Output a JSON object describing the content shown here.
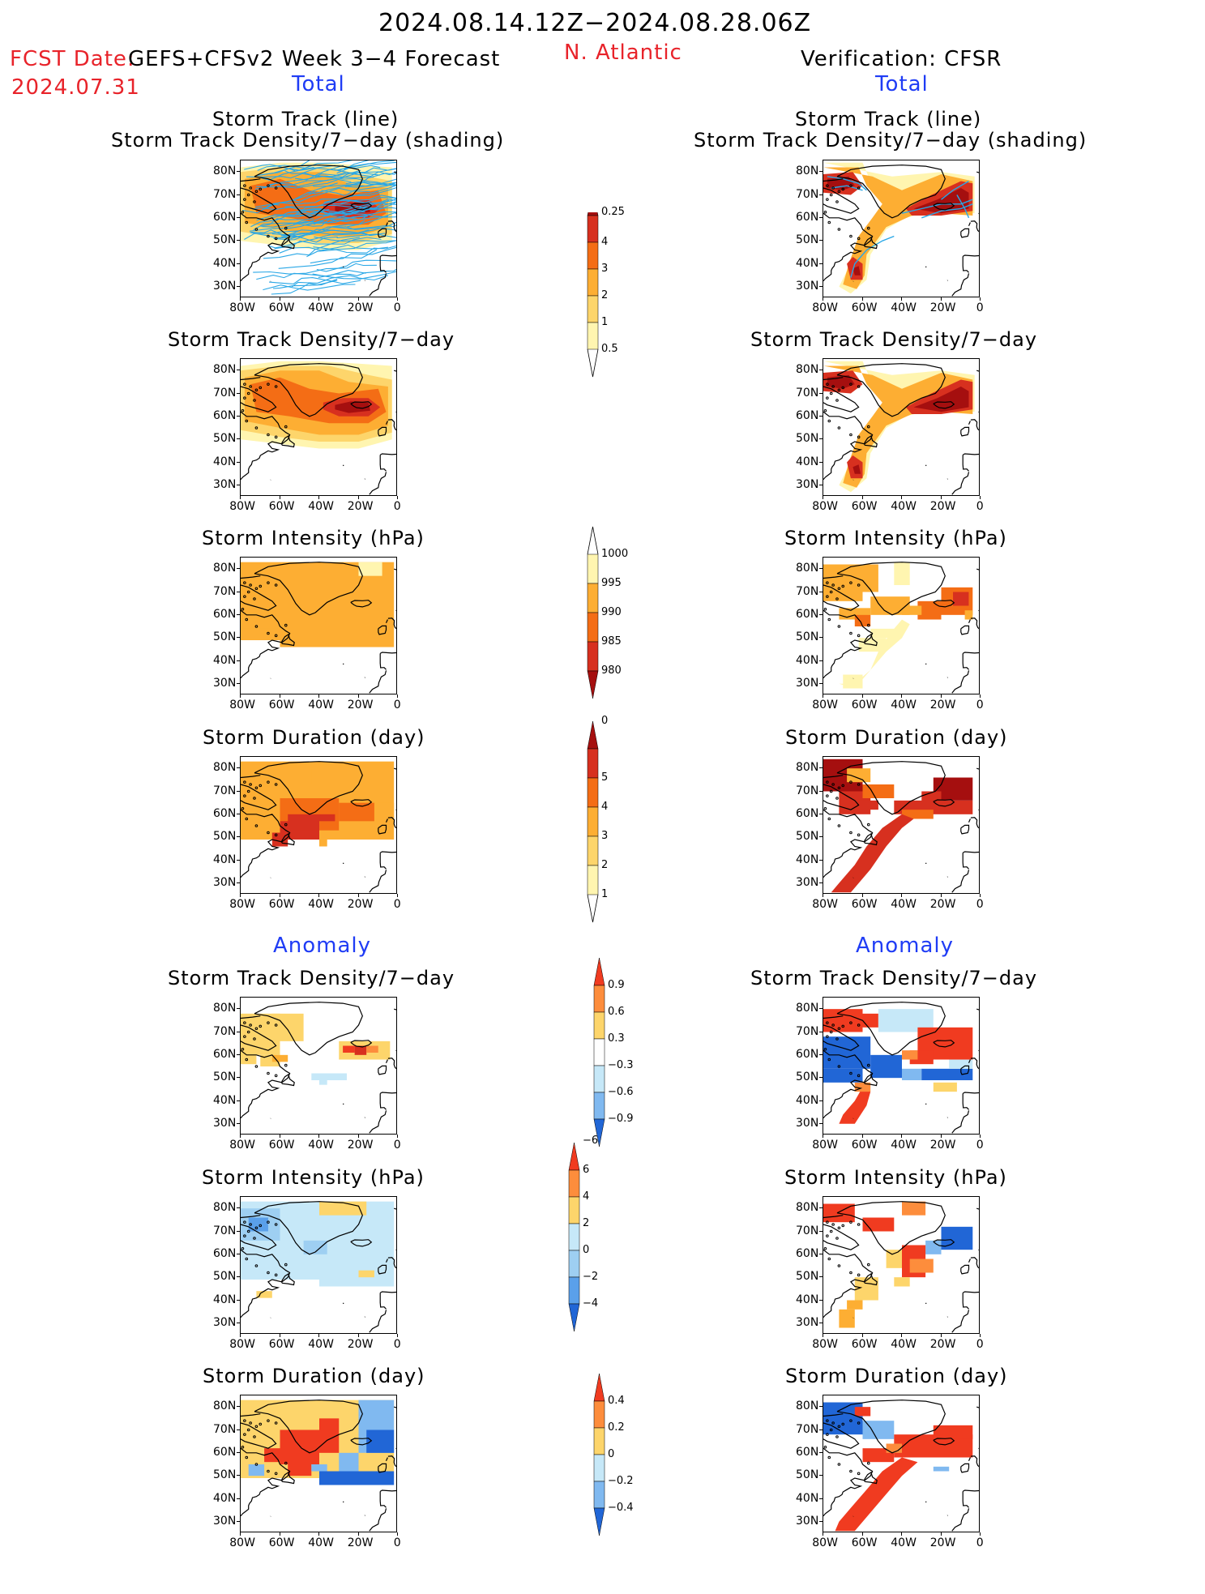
{
  "header": {
    "date_range": "2024.08.14.12Z−2024.08.28.06Z",
    "fcst_label": "FCST Date:",
    "fcst_date": "2024.07.31",
    "model": "GEFS+CFSv2 Week 3−4 Forecast",
    "region": "N. Atlantic",
    "verification": "Verification: CFSR",
    "left_total": "Total",
    "right_total": "Total",
    "left_anomaly": "Anomaly",
    "right_anomaly": "Anomaly"
  },
  "panel_titles": {
    "track_line": "Storm Track (line)",
    "track_shading": "Storm Track Density/7−day (shading)",
    "density": "Storm Track Density/7−day",
    "intensity": "Storm Intensity (hPa)",
    "duration": "Storm Duration (day)"
  },
  "axes": {
    "lat_ticks": [
      "80N",
      "70N",
      "60N",
      "50N",
      "40N",
      "30N"
    ],
    "lon_ticks": [
      "80W",
      "60W",
      "40W",
      "20W",
      "0"
    ]
  },
  "colorbars": [
    {
      "id": "density-total",
      "labels": [
        "4",
        "3",
        "2",
        "1",
        "0.5",
        "0.25"
      ],
      "colors": [
        "#a50f0f",
        "#d7301f",
        "#f46d15",
        "#fdae33",
        "#fdd56b",
        "#fff5b0"
      ]
    },
    {
      "id": "intensity-total",
      "labels": [
        "1000",
        "995",
        "990",
        "985",
        "980"
      ],
      "colors": [
        "#fff5b0",
        "#fdae33",
        "#f46d15",
        "#d7301f",
        "#a50f0f"
      ]
    },
    {
      "id": "duration-total",
      "labels": [
        "5",
        "4",
        "3",
        "2",
        "1",
        "0"
      ],
      "colors": [
        "#a50f0f",
        "#d7301f",
        "#f46d15",
        "#fdae33",
        "#fdd56b",
        "#fff5b0"
      ]
    },
    {
      "id": "density-anom",
      "labels": [
        "0.9",
        "0.6",
        "0.3",
        "−0.3",
        "−0.6",
        "−0.9"
      ],
      "colors": [
        "#f03b20",
        "#fd8d3c",
        "#fdd56b",
        "#ffffff",
        "#c6e8f8",
        "#80b9f0",
        "#2166d6"
      ]
    },
    {
      "id": "intensity-anom",
      "labels": [
        "6",
        "4",
        "2",
        "0",
        "−2",
        "−4",
        "−6"
      ],
      "colors": [
        "#f03b20",
        "#fd8d3c",
        "#fdd56b",
        "#c6e8f8",
        "#9ecff2",
        "#5aa0ea",
        "#2166d6"
      ]
    },
    {
      "id": "duration-anom",
      "labels": [
        "0.4",
        "0.2",
        "0",
        "−0.2",
        "−0.4"
      ],
      "colors": [
        "#f03b20",
        "#fd8d3c",
        "#fdd56b",
        "#c6e8f8",
        "#80b9f0",
        "#2166d6"
      ]
    }
  ],
  "palette": {
    "ltyellow": "#fff5b0",
    "yellow": "#fdd56b",
    "orange": "#fdae33",
    "dorange": "#f46d15",
    "red": "#d7301f",
    "dred": "#a50f0f",
    "arred": "#f03b20",
    "arorange": "#fd8d3c",
    "blue_lt": "#c6e8f8",
    "blue_md": "#80b9f0",
    "blue_dk": "#2166d6",
    "track": "#29a7e6"
  }
}
